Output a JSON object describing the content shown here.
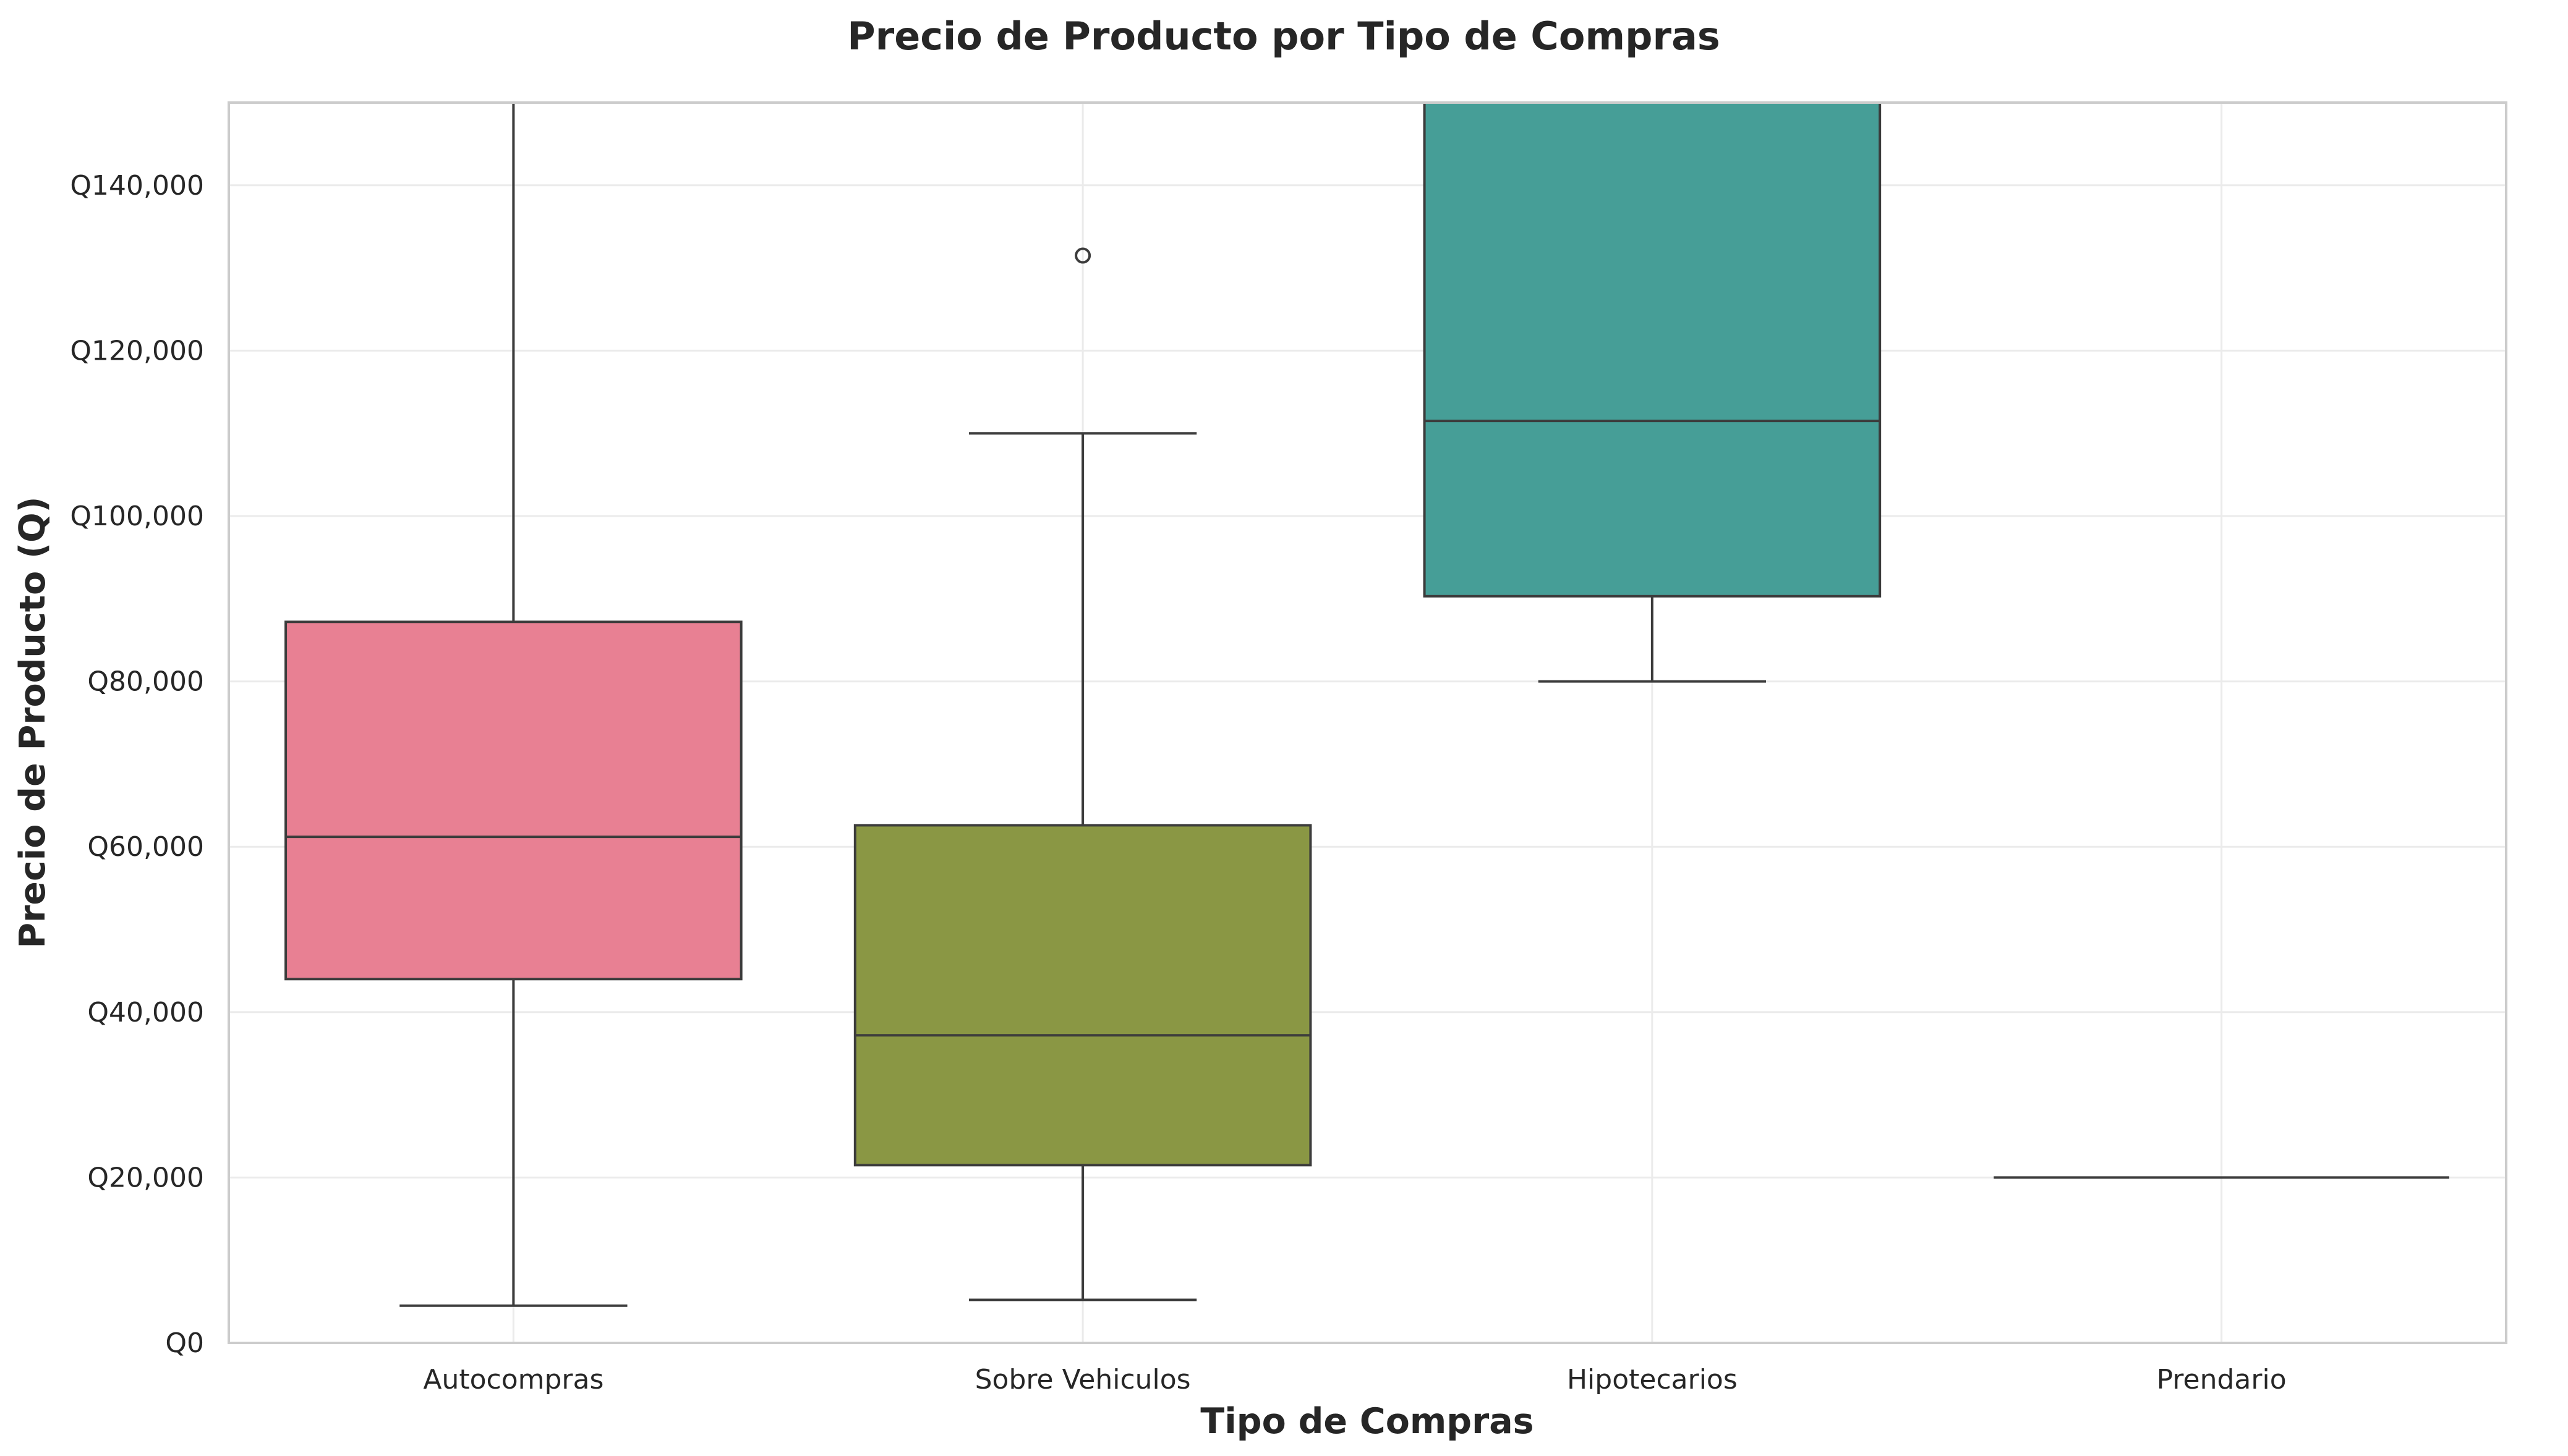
{
  "chart_data": {
    "type": "box",
    "title": "Precio de Producto por Tipo de Compras",
    "xlabel": "Tipo de Compras",
    "ylabel": "Precio de Producto (Q)",
    "ylim": [
      0,
      150000
    ],
    "yticks": [
      0,
      20000,
      40000,
      60000,
      80000,
      100000,
      120000,
      140000
    ],
    "ytick_labels": [
      "Q0",
      "Q20,000",
      "Q40,000",
      "Q60,000",
      "Q80,000",
      "Q100,000",
      "Q120,000",
      "Q140,000"
    ],
    "grid": true,
    "categories": [
      "Autocompras",
      "Sobre Vehiculos",
      "Hipotecarios",
      "Prendario"
    ],
    "boxes": [
      {
        "category": "Autocompras",
        "color": "#e88093",
        "whisker_low": 4500,
        "q1": 44000,
        "median": 61200,
        "q3": 87200,
        "whisker_high": 150000,
        "outliers": []
      },
      {
        "category": "Sobre Vehiculos",
        "color": "#8a9744",
        "whisker_low": 5200,
        "q1": 21500,
        "median": 37200,
        "q3": 62600,
        "whisker_high": 110000,
        "outliers": [
          131500
        ]
      },
      {
        "category": "Hipotecarios",
        "color": "#469e97",
        "whisker_low": 80000,
        "q1": 90300,
        "median": 111500,
        "q3": 150000,
        "whisker_high": 150000,
        "outliers": []
      },
      {
        "category": "Prendario",
        "color": "#3c3c3c",
        "whisker_low": 20000,
        "q1": 20000,
        "median": 20000,
        "q3": 20000,
        "whisker_high": 20000,
        "outliers": []
      }
    ]
  }
}
